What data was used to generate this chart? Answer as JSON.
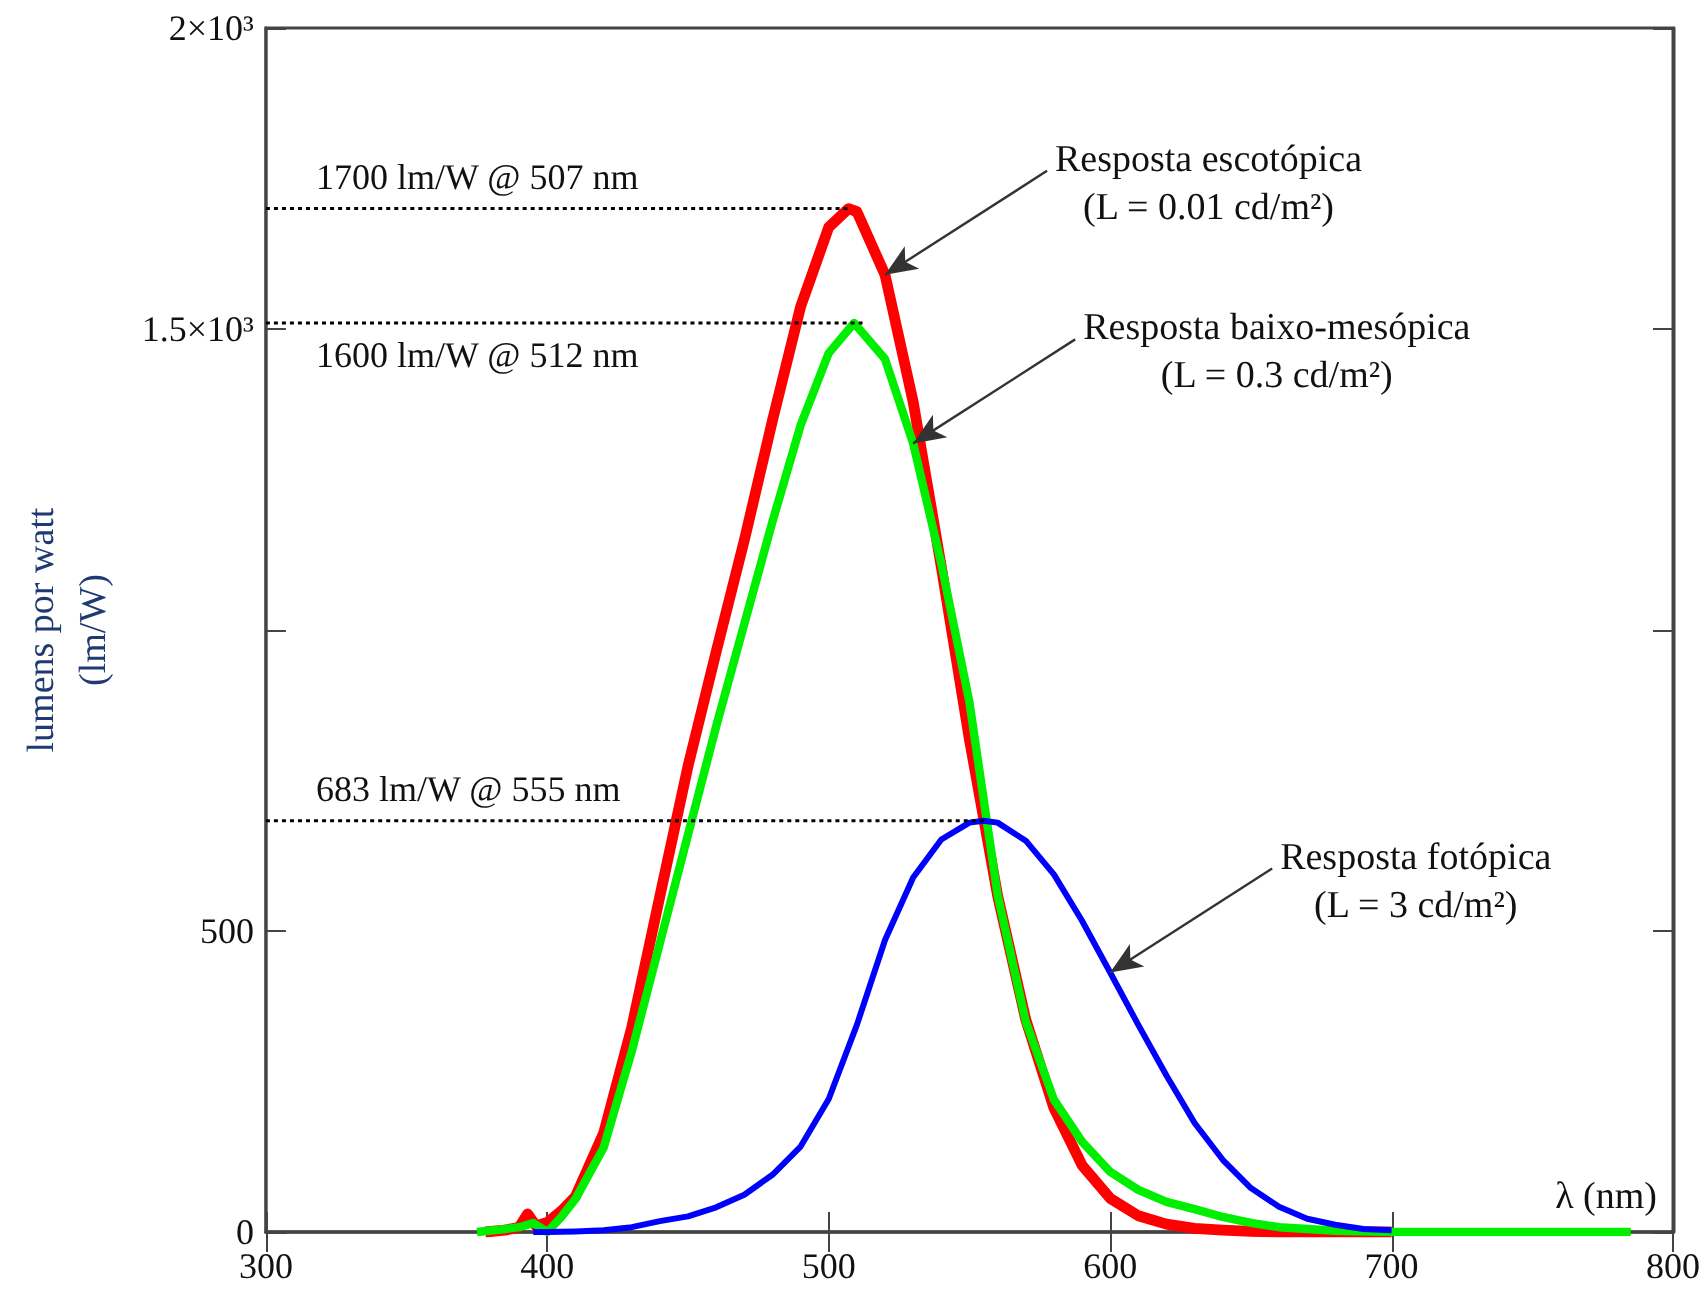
{
  "chart_data": {
    "type": "line",
    "xlabel": "λ (nm)",
    "ylabel": "lumens por watt\n(lm/W)",
    "xlim": [
      300,
      800
    ],
    "xticks": [
      300,
      400,
      500,
      600,
      700,
      800
    ],
    "ylim": [
      0,
      2000
    ],
    "yticks": [
      0,
      500,
      {
        "value": 1000,
        "label": null
      },
      {
        "value": 1500,
        "label": "1.5×10³"
      },
      {
        "value": 2000,
        "label": "2×10³"
      }
    ],
    "marker": "none",
    "series": [
      {
        "color": "#ff0000",
        "x": [
          378,
          385,
          390,
          393,
          396,
          400,
          405,
          410,
          420,
          430,
          440,
          450,
          460,
          470,
          480,
          490,
          500,
          507,
          510,
          520,
          530,
          540,
          550,
          560,
          570,
          580,
          590,
          600,
          610,
          620,
          630,
          640,
          650,
          660,
          680,
          700
        ],
        "values": [
          0,
          3,
          8,
          30,
          10,
          16,
          35,
          59,
          164,
          340,
          558,
          774,
          964,
          1149,
          1348,
          1537,
          1669,
          1700,
          1695,
          1590,
          1379,
          1105,
          818,
          559,
          353,
          206,
          111,
          56,
          27,
          13,
          6,
          3,
          1,
          0,
          0,
          0
        ]
      },
      {
        "color": "#00ee00",
        "x": [
          375,
          385,
          390,
          395,
          400,
          405,
          410,
          420,
          430,
          440,
          450,
          460,
          470,
          480,
          490,
          500,
          509,
          520,
          530,
          540,
          550,
          560,
          570,
          580,
          590,
          600,
          610,
          620,
          630,
          640,
          650,
          660,
          680,
          700,
          785
        ],
        "values": [
          0,
          5,
          8,
          15,
          0,
          25,
          55,
          140,
          300,
          480,
          660,
          840,
          1010,
          1180,
          1340,
          1460,
          1510,
          1450,
          1310,
          1110,
          880,
          560,
          350,
          220,
          150,
          100,
          70,
          50,
          38,
          25,
          15,
          8,
          2,
          0,
          0
        ]
      },
      {
        "color": "#0000ff",
        "x": [
          395,
          400,
          410,
          420,
          430,
          440,
          450,
          460,
          470,
          480,
          490,
          500,
          510,
          520,
          530,
          540,
          550,
          555,
          560,
          570,
          580,
          590,
          600,
          610,
          620,
          630,
          640,
          650,
          660,
          670,
          680,
          690,
          700
        ],
        "values": [
          0,
          0,
          1,
          3,
          8,
          18,
          26,
          41,
          62,
          95,
          142,
          221,
          344,
          485,
          589,
          652,
          680,
          683,
          680,
          650,
          594,
          517,
          431,
          344,
          260,
          181,
          120,
          73,
          42,
          22,
          12,
          5,
          3
        ]
      },
      {
        "name": "1700 lm/W @ 507 nm",
        "color": "#000000",
        "line_style": "dotted",
        "x": [
          300,
          507
        ],
        "values": [
          1700,
          1700
        ]
      },
      {
        "name": "1600 lm/W @ 512 nm",
        "color": "#000000",
        "line_style": "dotted",
        "x": [
          300,
          512
        ],
        "values": [
          1510,
          1510
        ]
      },
      {
        "name": "683 lm/W @ 555 nm",
        "color": "#000000",
        "line_style": "dotted",
        "x": [
          300,
          555
        ],
        "values": [
          683,
          683
        ]
      }
    ],
    "annotations": [
      {
        "text": "Resposta escotópica\n(L = 0.01 cd/m²)",
        "x": 520,
        "y": 1590
      },
      {
        "text": "Resposta baixo-mesópica\n(L = 0.3 cd/m²)",
        "x": 530,
        "y": 1310
      },
      {
        "text": "Resposta fotópica\n(L = 3 cd/m²)",
        "x": 600,
        "y": 431
      }
    ]
  }
}
